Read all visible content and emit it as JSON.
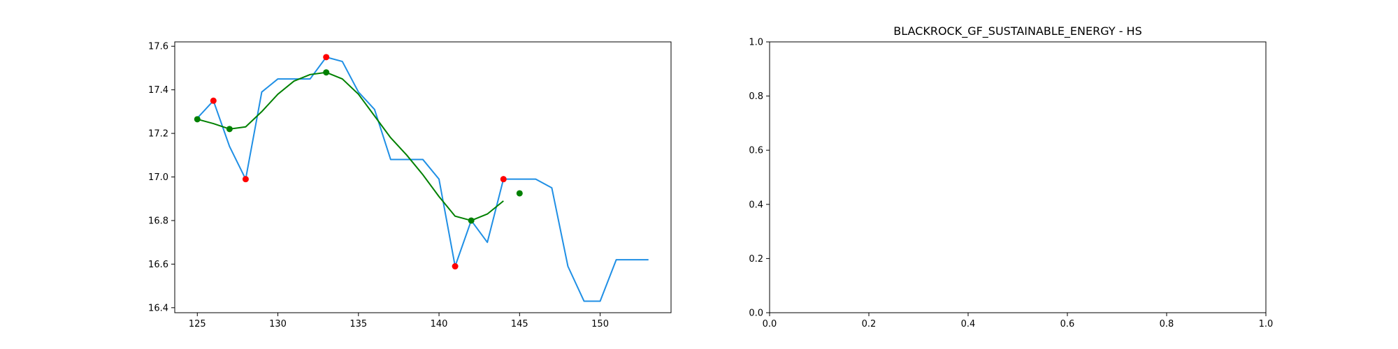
{
  "figure": {
    "background": "#ffffff"
  },
  "chart_data": [
    {
      "type": "line",
      "title": "",
      "xlabel": "",
      "ylabel": "",
      "xlim": [
        123.6,
        154.4
      ],
      "ylim": [
        16.377,
        17.62
      ],
      "xticks": [
        125,
        130,
        135,
        140,
        145,
        150
      ],
      "xtick_labels": [
        "125",
        "130",
        "135",
        "140",
        "145",
        "150"
      ],
      "yticks": [
        16.4,
        16.6,
        16.8,
        17.0,
        17.2,
        17.4,
        17.6
      ],
      "ytick_labels": [
        "16.4",
        "16.6",
        "16.8",
        "17.0",
        "17.2",
        "17.4",
        "17.6"
      ],
      "grid": false,
      "series": [
        {
          "kind": "line",
          "color": "#1f8fe5",
          "x": [
            125,
            126,
            127,
            128,
            129,
            130,
            131,
            132,
            133,
            134,
            135,
            136,
            137,
            138,
            139,
            140,
            141,
            142,
            143,
            144,
            145,
            146,
            147,
            148,
            149,
            150,
            151,
            152,
            153
          ],
          "y": [
            17.27,
            17.35,
            17.14,
            16.99,
            17.39,
            17.45,
            17.45,
            17.45,
            17.55,
            17.53,
            17.39,
            17.31,
            17.08,
            17.08,
            17.08,
            16.99,
            16.59,
            16.8,
            16.7,
            16.99,
            16.99,
            16.99,
            16.95,
            16.59,
            16.43,
            16.43,
            16.62,
            16.62,
            16.62
          ]
        },
        {
          "kind": "line",
          "color": "#008000",
          "x": [
            125,
            126,
            127,
            128,
            129,
            130,
            131,
            132,
            133,
            134,
            135,
            136,
            137,
            138,
            139,
            140,
            141,
            142,
            143,
            144
          ],
          "y": [
            17.265,
            17.245,
            17.22,
            17.23,
            17.3,
            17.38,
            17.44,
            17.47,
            17.48,
            17.45,
            17.38,
            17.28,
            17.18,
            17.1,
            17.01,
            16.91,
            16.82,
            16.8,
            16.83,
            16.89
          ]
        },
        {
          "kind": "scatter",
          "color": "#ff0000",
          "x": [
            126,
            128,
            133,
            141,
            144
          ],
          "y": [
            17.35,
            16.99,
            17.55,
            16.59,
            16.99
          ]
        },
        {
          "kind": "scatter",
          "color": "#008000",
          "x": [
            125,
            127,
            133,
            142,
            145
          ],
          "y": [
            17.265,
            17.22,
            17.48,
            16.8,
            16.925
          ]
        }
      ]
    },
    {
      "type": "line",
      "title": "BLACKROCK_GF_SUSTAINABLE_ENERGY - HS",
      "xlabel": "",
      "ylabel": "",
      "xlim": [
        0.0,
        1.0
      ],
      "ylim": [
        0.0,
        1.0
      ],
      "xticks": [
        0.0,
        0.2,
        0.4,
        0.6,
        0.8,
        1.0
      ],
      "xtick_labels": [
        "0.0",
        "0.2",
        "0.4",
        "0.6",
        "0.8",
        "1.0"
      ],
      "yticks": [
        0.0,
        0.2,
        0.4,
        0.6,
        0.8,
        1.0
      ],
      "ytick_labels": [
        "0.0",
        "0.2",
        "0.4",
        "0.6",
        "0.8",
        "1.0"
      ],
      "grid": false,
      "series": []
    }
  ]
}
